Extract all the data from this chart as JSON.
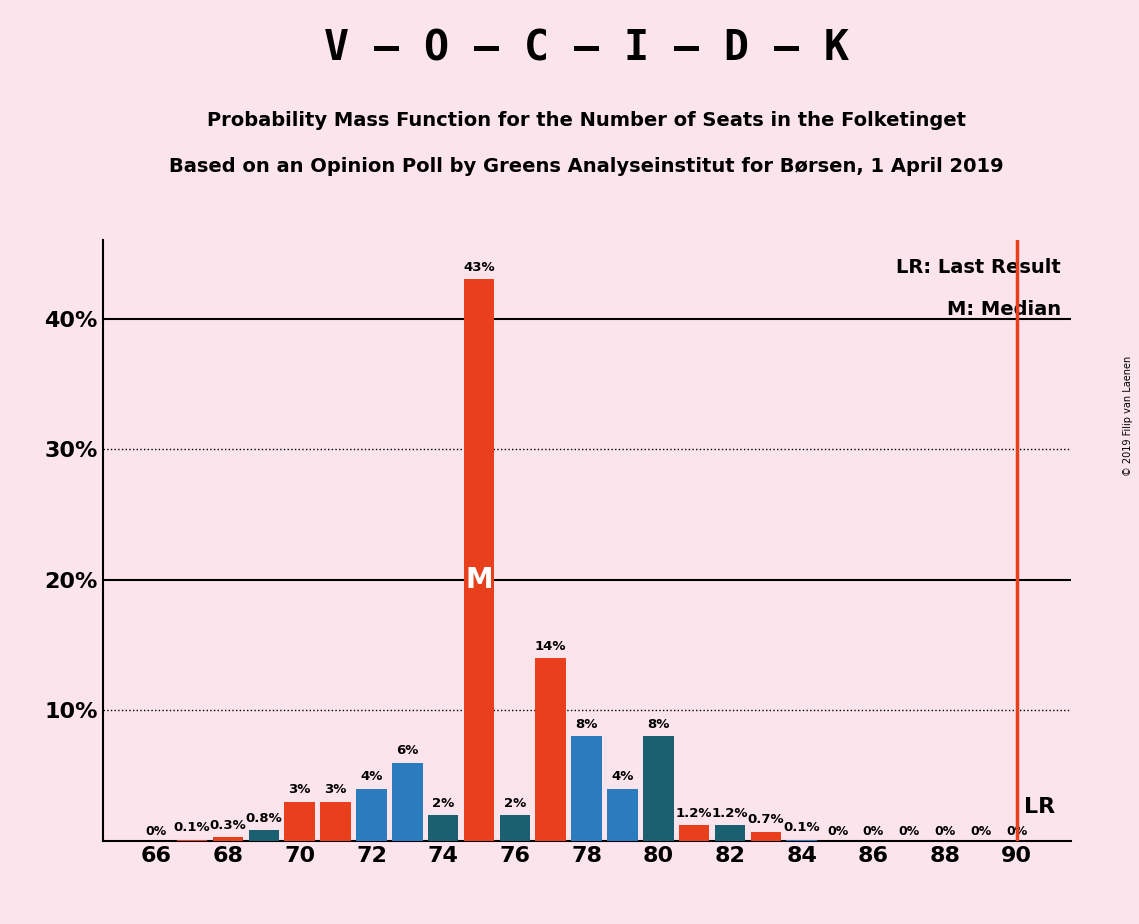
{
  "title_main": "V – O – C – I – D – K",
  "title_sub1": "Probability Mass Function for the Number of Seats in the Folketinget",
  "title_sub2": "Based on an Opinion Poll by Greens Analyseinstitut for Børsen, 1 April 2019",
  "copyright": "© 2019 Filip van Laenen",
  "background_color": "#fce4ec",
  "bar_data": [
    {
      "seat": 66,
      "value": 0.0,
      "color": "#e8401c",
      "label": "0%"
    },
    {
      "seat": 67,
      "value": 0.1,
      "color": "#e8401c",
      "label": "0.1%"
    },
    {
      "seat": 68,
      "value": 0.3,
      "color": "#e8401c",
      "label": "0.3%"
    },
    {
      "seat": 69,
      "value": 0.8,
      "color": "#1a6070",
      "label": "0.8%"
    },
    {
      "seat": 70,
      "value": 3.0,
      "color": "#e8401c",
      "label": "3%"
    },
    {
      "seat": 71,
      "value": 3.0,
      "color": "#e8401c",
      "label": "3%"
    },
    {
      "seat": 72,
      "value": 4.0,
      "color": "#2b7bbf",
      "label": "4%"
    },
    {
      "seat": 73,
      "value": 6.0,
      "color": "#2b7bbf",
      "label": "6%"
    },
    {
      "seat": 74,
      "value": 2.0,
      "color": "#1a6070",
      "label": "2%"
    },
    {
      "seat": 75,
      "value": 43.0,
      "color": "#e8401c",
      "label": "43%"
    },
    {
      "seat": 76,
      "value": 2.0,
      "color": "#1a6070",
      "label": "2%"
    },
    {
      "seat": 77,
      "value": 14.0,
      "color": "#e8401c",
      "label": "14%"
    },
    {
      "seat": 78,
      "value": 8.0,
      "color": "#2b7bbf",
      "label": "8%"
    },
    {
      "seat": 79,
      "value": 4.0,
      "color": "#2b7bbf",
      "label": "4%"
    },
    {
      "seat": 80,
      "value": 8.0,
      "color": "#1a6070",
      "label": "8%"
    },
    {
      "seat": 81,
      "value": 1.2,
      "color": "#e8401c",
      "label": "1.2%"
    },
    {
      "seat": 82,
      "value": 1.2,
      "color": "#1a6070",
      "label": "1.2%"
    },
    {
      "seat": 83,
      "value": 0.7,
      "color": "#e8401c",
      "label": "0.7%"
    },
    {
      "seat": 84,
      "value": 0.1,
      "color": "#2b7bbf",
      "label": "0.1%"
    },
    {
      "seat": 85,
      "value": 0.0,
      "color": "#e8401c",
      "label": "0%"
    },
    {
      "seat": 86,
      "value": 0.0,
      "color": "#e8401c",
      "label": "0%"
    },
    {
      "seat": 87,
      "value": 0.0,
      "color": "#e8401c",
      "label": "0%"
    },
    {
      "seat": 88,
      "value": 0.0,
      "color": "#e8401c",
      "label": "0%"
    },
    {
      "seat": 89,
      "value": 0.0,
      "color": "#e8401c",
      "label": "0%"
    },
    {
      "seat": 90,
      "value": 0.0,
      "color": "#e8401c",
      "label": "0%"
    }
  ],
  "median_seat": 75,
  "last_result_seat": 90,
  "xlim": [
    64.5,
    91.5
  ],
  "ylim": [
    0,
    46
  ],
  "yticks": [
    0,
    10,
    20,
    30,
    40
  ],
  "ytick_labels": [
    "",
    "10%",
    "20%",
    "30%",
    "40%"
  ],
  "xticks": [
    66,
    68,
    70,
    72,
    74,
    76,
    78,
    80,
    82,
    84,
    86,
    88,
    90
  ],
  "dotted_lines": [
    10,
    30
  ],
  "solid_lines": [
    20,
    40
  ],
  "lr_label": "LR",
  "legend_lr": "LR: Last Result",
  "legend_m": "M: Median",
  "median_label": "M",
  "title_fontsize": 30,
  "subtitle_fontsize": 14,
  "tick_fontsize": 16,
  "label_fontsize": 9,
  "bar_width": 0.85
}
